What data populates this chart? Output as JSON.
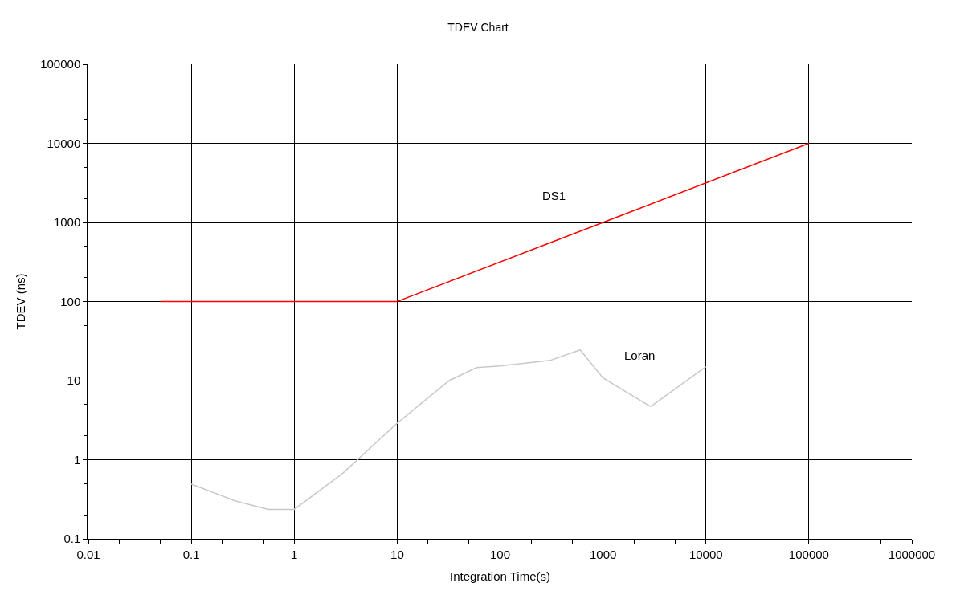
{
  "chart_data": {
    "type": "line",
    "title": "TDEV Chart",
    "xlabel": "Integration Time(s)",
    "ylabel": "TDEV (ns)",
    "log": "xy",
    "xlim": [
      0.01,
      1000000
    ],
    "xticks": [
      0.01,
      0.1,
      1,
      10,
      100,
      1000,
      10000,
      100000,
      1000000
    ],
    "ylim": [
      0.1,
      100000
    ],
    "yticks": [
      0.1,
      1,
      10,
      100,
      1000,
      10000,
      100000
    ],
    "grid": true,
    "legend": false,
    "marker": "none",
    "line_style": "solid",
    "series": [
      {
        "name": "DS1",
        "color": "#ff0000",
        "x": [
          0.05,
          10,
          100000
        ],
        "values": [
          100,
          100,
          10000
        ]
      },
      {
        "name": "Loran",
        "color": "#c8c8c8",
        "x": [
          0.1,
          0.27,
          0.56,
          1,
          2.95,
          10,
          32,
          59,
          100,
          306,
          600,
          1000,
          2900,
          10000
        ],
        "values": [
          0.49,
          0.3,
          0.235,
          0.235,
          0.67,
          2.9,
          10,
          14.6,
          15.3,
          18,
          24.5,
          10.8,
          4.7,
          15
        ]
      }
    ]
  }
}
